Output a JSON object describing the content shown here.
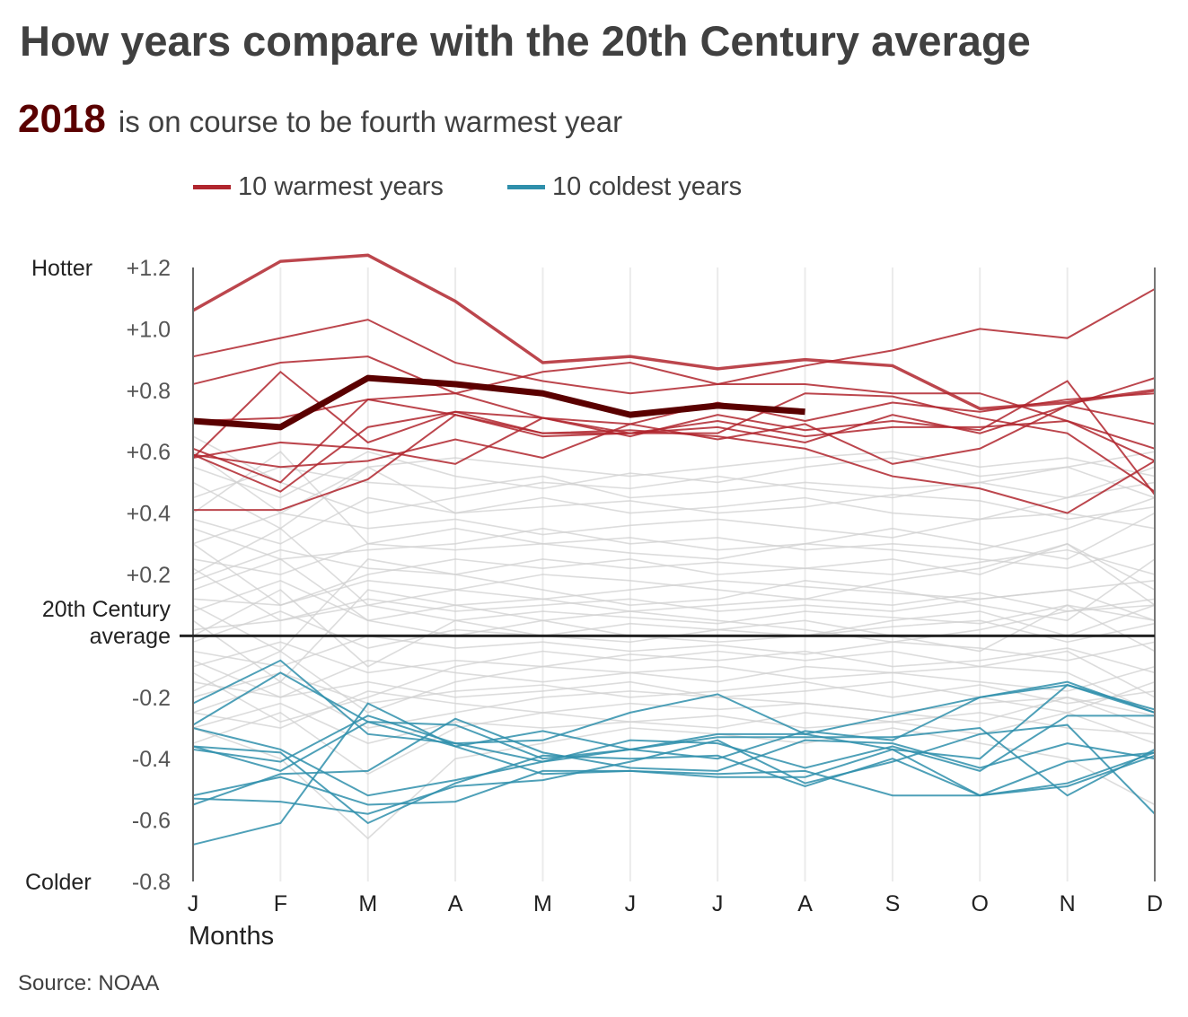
{
  "title": "How years compare with the 20th Century average",
  "subtitle": {
    "year": "2018",
    "text": "is on course to be fourth warmest year"
  },
  "legend": [
    {
      "label": "10 warmest years",
      "color": "#b0262e"
    },
    {
      "label": "10 coldest years",
      "color": "#2f8fab"
    }
  ],
  "source": "Source: NOAA",
  "chart_data": {
    "type": "line",
    "xlabel": "Months",
    "categories": [
      "J",
      "F",
      "M",
      "A",
      "M",
      "J",
      "J",
      "A",
      "S",
      "O",
      "N",
      "D"
    ],
    "ylim": [
      -0.8,
      1.2
    ],
    "yticks": [
      "+1.2",
      "+1.0",
      "+0.8",
      "+0.6",
      "+0.4",
      "+0.2",
      "-0.2",
      "-0.4",
      "-0.6",
      "-0.8"
    ],
    "ytick_values": [
      1.2,
      1.0,
      0.8,
      0.6,
      0.4,
      0.2,
      -0.2,
      -0.4,
      -0.6,
      -0.8
    ],
    "annotations": {
      "hotter": "Hotter",
      "colder": "Colder",
      "baseline_line1": "20th Century",
      "baseline_line2": "average"
    },
    "baseline": 0,
    "colors": {
      "highlight": "#5a0000",
      "warm": "#b0262e",
      "cold": "#2f8fab",
      "other": "#d0d0d0"
    },
    "highlight": {
      "name": "2018",
      "values": [
        0.7,
        0.68,
        0.84,
        0.82,
        0.79,
        0.72,
        0.75,
        0.73
      ]
    },
    "warmest": [
      [
        1.06,
        1.22,
        1.24,
        1.09,
        0.89,
        0.91,
        0.87,
        0.9,
        0.88,
        0.74,
        0.76,
        0.8
      ],
      [
        0.91,
        0.97,
        1.03,
        0.89,
        0.83,
        0.79,
        0.82,
        0.82,
        0.79,
        0.79,
        0.7,
        0.61
      ],
      [
        0.82,
        0.89,
        0.91,
        0.79,
        0.86,
        0.89,
        0.82,
        0.88,
        0.93,
        1.0,
        0.97,
        1.13
      ],
      [
        0.58,
        0.86,
        0.63,
        0.73,
        0.71,
        0.69,
        0.76,
        0.7,
        0.76,
        0.73,
        0.77,
        0.79
      ],
      [
        0.61,
        0.5,
        0.77,
        0.79,
        0.71,
        0.65,
        0.72,
        0.67,
        0.7,
        0.67,
        0.83,
        0.46
      ],
      [
        0.59,
        0.47,
        0.68,
        0.73,
        0.66,
        0.66,
        0.7,
        0.65,
        0.68,
        0.68,
        0.7,
        0.57
      ],
      [
        0.58,
        0.63,
        0.61,
        0.56,
        0.71,
        0.66,
        0.66,
        0.79,
        0.78,
        0.71,
        0.66,
        0.47
      ],
      [
        0.59,
        0.55,
        0.57,
        0.64,
        0.58,
        0.69,
        0.64,
        0.69,
        0.56,
        0.61,
        0.75,
        0.84
      ],
      [
        0.41,
        0.41,
        0.51,
        0.72,
        0.65,
        0.66,
        0.68,
        0.63,
        0.72,
        0.66,
        0.75,
        0.69
      ],
      [
        0.7,
        0.71,
        0.77,
        0.72,
        0.66,
        0.67,
        0.65,
        0.61,
        0.52,
        0.48,
        0.4,
        0.57
      ]
    ],
    "coldest": [
      [
        -0.22,
        -0.08,
        -0.32,
        -0.35,
        -0.34,
        -0.25,
        -0.19,
        -0.32,
        -0.37,
        -0.4,
        -0.16,
        -0.24
      ],
      [
        -0.29,
        -0.12,
        -0.28,
        -0.29,
        -0.4,
        -0.37,
        -0.4,
        -0.31,
        -0.34,
        -0.2,
        -0.15,
        -0.25
      ],
      [
        -0.36,
        -0.38,
        -0.61,
        -0.48,
        -0.39,
        -0.4,
        -0.39,
        -0.49,
        -0.4,
        -0.52,
        -0.49,
        -0.39
      ],
      [
        -0.37,
        -0.41,
        -0.26,
        -0.35,
        -0.41,
        -0.34,
        -0.35,
        -0.43,
        -0.36,
        -0.44,
        -0.26,
        -0.26
      ],
      [
        -0.36,
        -0.44,
        -0.28,
        -0.36,
        -0.31,
        -0.37,
        -0.33,
        -0.33,
        -0.33,
        -0.3,
        -0.52,
        -0.37
      ],
      [
        -0.52,
        -0.46,
        -0.55,
        -0.54,
        -0.44,
        -0.44,
        -0.46,
        -0.46,
        -0.37,
        -0.52,
        -0.48,
        -0.38
      ],
      [
        -0.55,
        -0.45,
        -0.44,
        -0.27,
        -0.38,
        -0.43,
        -0.44,
        -0.34,
        -0.35,
        -0.43,
        -0.35,
        -0.4
      ],
      [
        -0.68,
        -0.61,
        -0.22,
        -0.36,
        -0.45,
        -0.44,
        -0.45,
        -0.44,
        -0.52,
        -0.52,
        -0.41,
        -0.38
      ],
      [
        -0.53,
        -0.54,
        -0.58,
        -0.49,
        -0.47,
        -0.41,
        -0.34,
        -0.48,
        -0.41,
        -0.32,
        -0.29,
        -0.58
      ],
      [
        -0.3,
        -0.37,
        -0.52,
        -0.47,
        -0.41,
        -0.37,
        -0.32,
        -0.32,
        -0.26,
        -0.2,
        -0.16,
        -0.25
      ]
    ],
    "other_years": [
      [
        0.55,
        0.45,
        0.6,
        0.52,
        0.48,
        0.53,
        0.5,
        0.55,
        0.58,
        0.52,
        0.55,
        0.6
      ],
      [
        0.45,
        0.55,
        0.5,
        0.48,
        0.52,
        0.45,
        0.47,
        0.5,
        0.48,
        0.5,
        0.45,
        0.55
      ],
      [
        0.38,
        0.3,
        0.45,
        0.4,
        0.42,
        0.44,
        0.4,
        0.42,
        0.46,
        0.44,
        0.38,
        0.42
      ],
      [
        0.3,
        0.4,
        0.35,
        0.38,
        0.33,
        0.36,
        0.38,
        0.35,
        0.32,
        0.38,
        0.4,
        0.35
      ],
      [
        0.25,
        0.2,
        0.3,
        0.28,
        0.3,
        0.27,
        0.25,
        0.3,
        0.28,
        0.25,
        0.22,
        0.3
      ],
      [
        0.18,
        0.28,
        0.22,
        0.2,
        0.25,
        0.22,
        0.24,
        0.22,
        0.2,
        0.24,
        0.28,
        0.2
      ],
      [
        0.12,
        0.1,
        0.18,
        0.15,
        0.12,
        0.15,
        0.18,
        0.16,
        0.14,
        0.12,
        0.15,
        0.18
      ],
      [
        0.08,
        0.18,
        0.05,
        0.1,
        0.12,
        0.08,
        0.1,
        0.12,
        0.1,
        0.14,
        0.08,
        0.1
      ],
      [
        0.02,
        0.05,
        0.1,
        0.05,
        0.08,
        0.06,
        0.04,
        0.08,
        0.06,
        0.04,
        0.1,
        0.05
      ],
      [
        -0.02,
        0.08,
        -0.04,
        0.02,
        0.0,
        0.04,
        0.02,
        0.0,
        0.03,
        0.05,
        -0.02,
        0.04
      ],
      [
        -0.05,
        -0.1,
        0.0,
        -0.04,
        -0.02,
        -0.05,
        -0.03,
        -0.06,
        -0.02,
        -0.04,
        -0.08,
        -0.02
      ],
      [
        -0.1,
        -0.02,
        -0.12,
        -0.08,
        -0.1,
        -0.06,
        -0.08,
        -0.05,
        -0.1,
        -0.08,
        -0.04,
        -0.12
      ],
      [
        -0.15,
        -0.2,
        -0.08,
        -0.12,
        -0.15,
        -0.12,
        -0.1,
        -0.14,
        -0.12,
        -0.15,
        -0.18,
        -0.1
      ],
      [
        -0.2,
        -0.12,
        -0.22,
        -0.18,
        -0.16,
        -0.2,
        -0.18,
        -0.15,
        -0.2,
        -0.16,
        -0.22,
        -0.18
      ],
      [
        -0.25,
        -0.3,
        -0.18,
        -0.22,
        -0.25,
        -0.22,
        -0.24,
        -0.22,
        -0.25,
        -0.28,
        -0.2,
        -0.26
      ],
      [
        -0.3,
        -0.22,
        -0.35,
        -0.28,
        -0.3,
        -0.28,
        -0.26,
        -0.3,
        -0.28,
        -0.25,
        -0.3,
        -0.32
      ],
      [
        0.65,
        0.5,
        0.4,
        0.45,
        0.5,
        0.48,
        0.52,
        0.48,
        0.45,
        0.5,
        0.55,
        0.45
      ],
      [
        0.4,
        0.6,
        0.3,
        0.35,
        0.3,
        0.32,
        0.28,
        0.3,
        0.35,
        0.3,
        0.25,
        0.4
      ],
      [
        0.2,
        0.35,
        0.1,
        0.15,
        0.2,
        0.18,
        0.15,
        0.12,
        0.18,
        0.22,
        0.3,
        0.15
      ],
      [
        0.1,
        -0.05,
        0.25,
        0.2,
        0.15,
        0.1,
        0.12,
        0.18,
        0.15,
        0.1,
        0.05,
        0.25
      ],
      [
        0.0,
        0.15,
        -0.1,
        0.05,
        0.0,
        -0.02,
        0.02,
        0.05,
        0.0,
        -0.05,
        0.1,
        -0.05
      ],
      [
        -0.18,
        -0.05,
        -0.25,
        -0.15,
        -0.1,
        -0.12,
        -0.15,
        -0.1,
        -0.12,
        -0.1,
        -0.05,
        -0.2
      ],
      [
        -0.35,
        -0.25,
        -0.45,
        -0.3,
        -0.25,
        -0.28,
        -0.3,
        -0.25,
        -0.28,
        -0.32,
        -0.25,
        -0.35
      ],
      [
        0.3,
        0.1,
        0.2,
        0.25,
        0.22,
        0.25,
        0.2,
        0.22,
        0.25,
        0.2,
        0.3,
        0.1
      ],
      [
        0.5,
        0.35,
        0.55,
        0.4,
        0.45,
        0.4,
        0.42,
        0.45,
        0.4,
        0.38,
        0.45,
        0.5
      ],
      [
        0.15,
        0.25,
        0.05,
        0.0,
        0.05,
        0.0,
        -0.02,
        0.0,
        0.05,
        0.08,
        0.0,
        0.1
      ],
      [
        -0.08,
        -0.2,
        -0.15,
        -0.2,
        -0.18,
        -0.15,
        -0.2,
        -0.18,
        -0.15,
        -0.2,
        -0.25,
        -0.15
      ],
      [
        0.05,
        -0.15,
        0.15,
        0.1,
        0.05,
        0.08,
        0.05,
        0.02,
        -0.02,
        0.02,
        0.08,
        0.12
      ],
      [
        0.35,
        0.25,
        0.28,
        0.3,
        0.35,
        0.3,
        0.32,
        0.28,
        0.3,
        0.28,
        0.35,
        0.45
      ],
      [
        -0.12,
        -0.28,
        -0.2,
        -0.1,
        -0.05,
        -0.08,
        -0.05,
        -0.08,
        -0.05,
        -0.1,
        -0.12,
        -0.25
      ],
      [
        0.6,
        0.4,
        0.55,
        0.58,
        0.55,
        0.52,
        0.55,
        0.58,
        0.6,
        0.55,
        0.58,
        0.52
      ],
      [
        -0.25,
        -0.15,
        -0.3,
        -0.25,
        -0.2,
        -0.18,
        -0.2,
        -0.22,
        -0.25,
        -0.22,
        -0.2,
        -0.3
      ],
      [
        0.22,
        0.05,
        0.12,
        0.08,
        0.1,
        0.12,
        0.08,
        0.1,
        0.08,
        0.12,
        0.15,
        0.05
      ],
      [
        -0.3,
        -0.4,
        -0.66,
        -0.4,
        -0.35,
        -0.3,
        -0.32,
        -0.35,
        -0.3,
        -0.35,
        -0.4,
        -0.55
      ]
    ]
  }
}
